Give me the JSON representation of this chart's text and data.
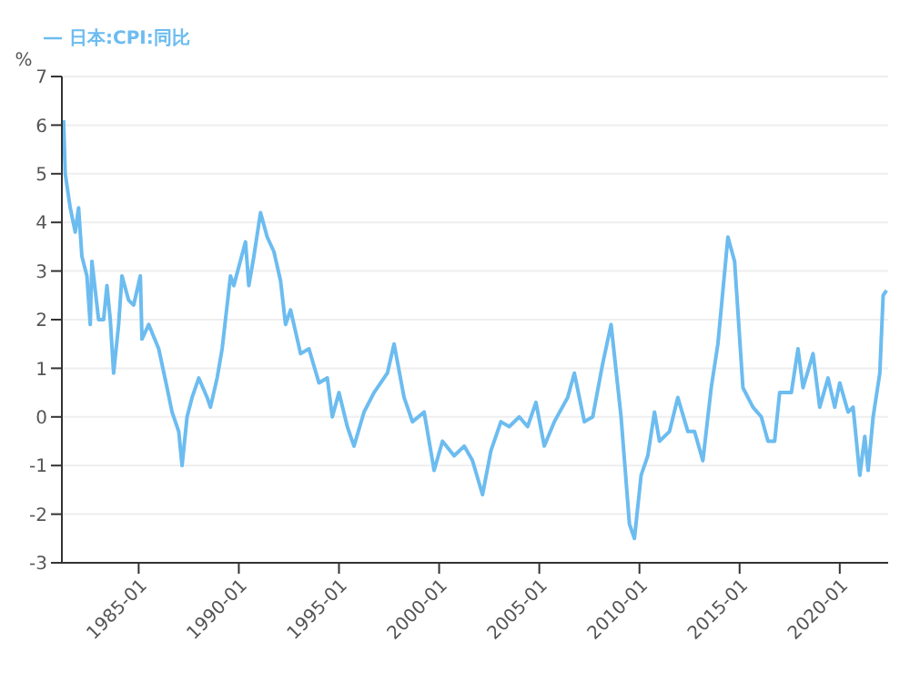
{
  "chart_data": {
    "type": "line",
    "ylabel": "%",
    "legend": "top left",
    "grid": "y",
    "marker": "none",
    "line_style": "solid",
    "xlim": [
      "1981-03",
      "2022-06"
    ],
    "xticks": [
      "1985-01",
      "1990-01",
      "1995-01",
      "2000-01",
      "2005-01",
      "2010-01",
      "2015-01",
      "2020-01"
    ],
    "ylim": [
      -3,
      7
    ],
    "yticks": [
      -3,
      -2,
      -1,
      0,
      1,
      2,
      3,
      4,
      5,
      6,
      7
    ],
    "x": [
      "1981-04",
      "1981-05",
      "1981-08",
      "1981-11",
      "1982-01",
      "1982-03",
      "1982-06",
      "1982-08",
      "1982-09",
      "1983-01",
      "1983-04",
      "1983-06",
      "1983-08",
      "1983-10",
      "1984-01",
      "1984-03",
      "1984-07",
      "1984-10",
      "1985-02",
      "1985-03",
      "1985-07",
      "1986-01",
      "1986-06",
      "1986-09",
      "1987-01",
      "1987-03",
      "1987-06",
      "1987-09",
      "1988-01",
      "1988-06",
      "1988-08",
      "1988-12",
      "1989-03",
      "1989-08",
      "1989-10",
      "1990-05",
      "1990-07",
      "1990-10",
      "1991-02",
      "1991-06",
      "1991-10",
      "1992-02",
      "1992-05",
      "1992-08",
      "1993-02",
      "1993-07",
      "1994-01",
      "1994-06",
      "1994-09",
      "1995-01",
      "1995-06",
      "1995-10",
      "1996-04",
      "1996-10",
      "1997-06",
      "1997-10",
      "1998-04",
      "1998-09",
      "1999-04",
      "1999-10",
      "2000-03",
      "2000-10",
      "2001-04",
      "2001-09",
      "2002-03",
      "2002-08",
      "2003-02",
      "2003-07",
      "2004-01",
      "2004-06",
      "2004-11",
      "2005-04",
      "2005-10",
      "2006-06",
      "2006-10",
      "2007-04",
      "2007-09",
      "2008-03",
      "2008-08",
      "2009-02",
      "2009-07",
      "2009-10",
      "2010-02",
      "2010-06",
      "2010-10",
      "2011-01",
      "2011-07",
      "2011-12",
      "2012-06",
      "2012-10",
      "2013-03",
      "2013-08",
      "2013-12",
      "2014-06",
      "2014-10",
      "2015-03",
      "2015-09",
      "2016-02",
      "2016-06",
      "2016-10",
      "2017-01",
      "2017-08",
      "2017-12",
      "2018-03",
      "2018-09",
      "2019-01",
      "2019-06",
      "2019-10",
      "2020-01",
      "2020-06",
      "2020-09",
      "2021-01",
      "2021-04",
      "2021-06",
      "2021-09",
      "2022-01",
      "2022-03",
      "2022-05"
    ],
    "series": [
      {
        "name": "日本:CPI:同比",
        "color": "#6cbcf0",
        "values": [
          6.1,
          5.0,
          4.3,
          3.8,
          4.3,
          3.3,
          2.9,
          1.9,
          3.2,
          2.0,
          2.0,
          2.7,
          2.0,
          0.9,
          1.9,
          2.9,
          2.4,
          2.3,
          2.9,
          1.6,
          1.9,
          1.4,
          0.6,
          0.1,
          -0.3,
          -1.0,
          0.0,
          0.4,
          0.8,
          0.4,
          0.2,
          0.8,
          1.4,
          2.9,
          2.7,
          3.6,
          2.7,
          3.3,
          4.2,
          3.7,
          3.4,
          2.8,
          1.9,
          2.2,
          1.3,
          1.4,
          0.7,
          0.8,
          0.0,
          0.5,
          -0.2,
          -0.6,
          0.1,
          0.5,
          0.9,
          1.5,
          0.4,
          -0.1,
          0.1,
          -1.1,
          -0.5,
          -0.8,
          -0.6,
          -0.9,
          -1.6,
          -0.7,
          -0.1,
          -0.2,
          0.0,
          -0.2,
          0.3,
          -0.6,
          -0.1,
          0.4,
          0.9,
          -0.1,
          0.0,
          1.1,
          1.9,
          0.0,
          -2.2,
          -2.5,
          -1.2,
          -0.8,
          0.1,
          -0.5,
          -0.3,
          0.4,
          -0.3,
          -0.3,
          -0.9,
          0.6,
          1.5,
          3.7,
          3.2,
          0.6,
          0.2,
          0.0,
          -0.5,
          -0.5,
          0.5,
          0.5,
          1.4,
          0.6,
          1.3,
          0.2,
          0.8,
          0.2,
          0.7,
          0.1,
          0.2,
          -1.2,
          -0.4,
          -1.1,
          0.0,
          0.9,
          2.5,
          2.6
        ]
      }
    ]
  }
}
